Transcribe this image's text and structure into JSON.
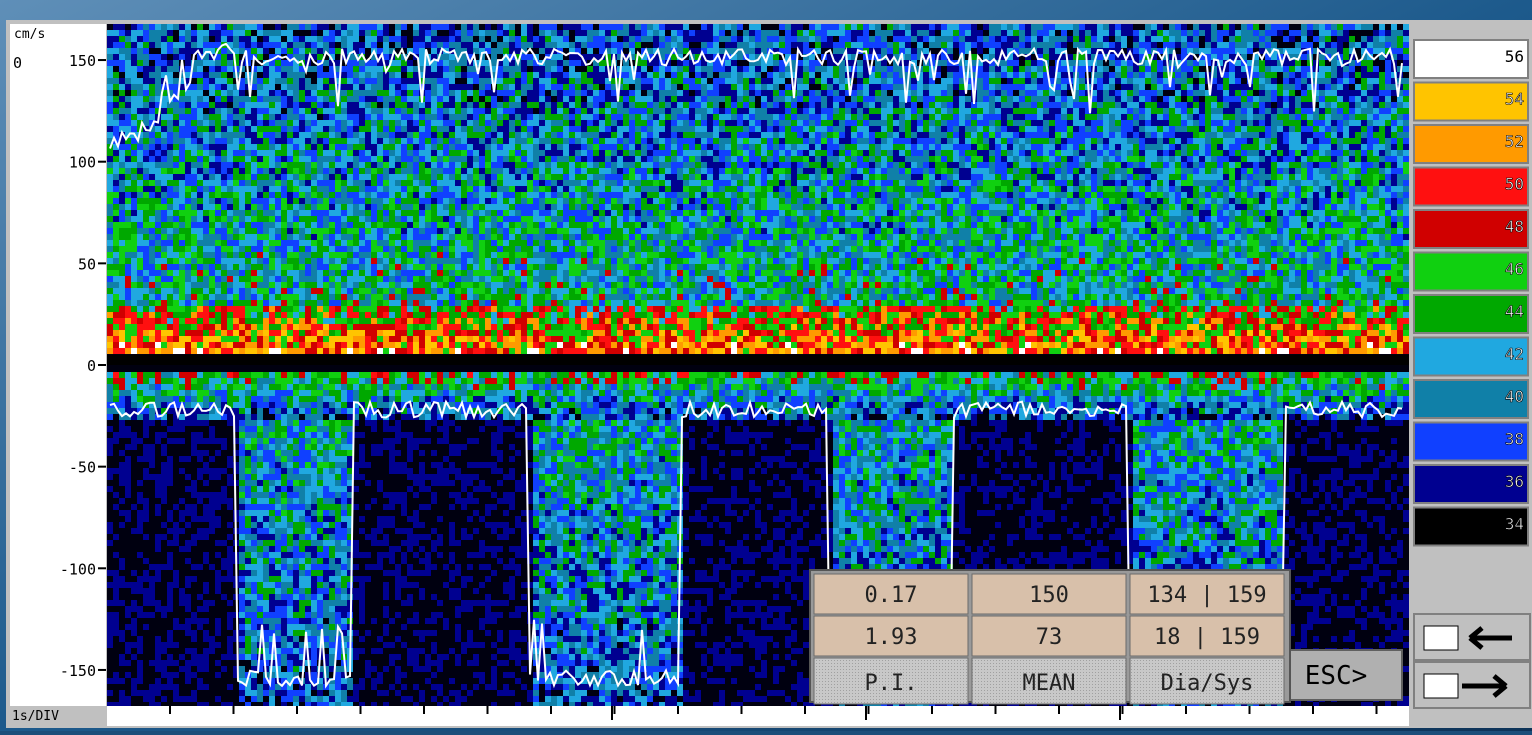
{
  "axis": {
    "unit": "cm/s",
    "baseline": "0",
    "ticks": [
      150,
      100,
      50,
      0,
      -50,
      -100,
      -150
    ],
    "time_scale": "1s/DIV"
  },
  "color_scale": [
    {
      "label": "56",
      "color": "#ffffff"
    },
    {
      "label": "54",
      "color": "#ffc400"
    },
    {
      "label": "52",
      "color": "#ff9a00"
    },
    {
      "label": "50",
      "color": "#ff1010"
    },
    {
      "label": "48",
      "color": "#d00000"
    },
    {
      "label": "46",
      "color": "#10d010"
    },
    {
      "label": "44",
      "color": "#00a800"
    },
    {
      "label": "42",
      "color": "#20a8e0"
    },
    {
      "label": "40",
      "color": "#1080a8"
    },
    {
      "label": "38",
      "color": "#1040ff"
    },
    {
      "label": "36",
      "color": "#000090"
    },
    {
      "label": "34",
      "color": "#000000"
    }
  ],
  "table": {
    "rows": [
      [
        "0.17",
        "150",
        "134 | 159"
      ],
      [
        "1.93",
        "73",
        "18 | 159"
      ]
    ],
    "headers": [
      "P.I.",
      "MEAN",
      "Dia/Sys"
    ]
  },
  "esc_button": "ESC>"
}
